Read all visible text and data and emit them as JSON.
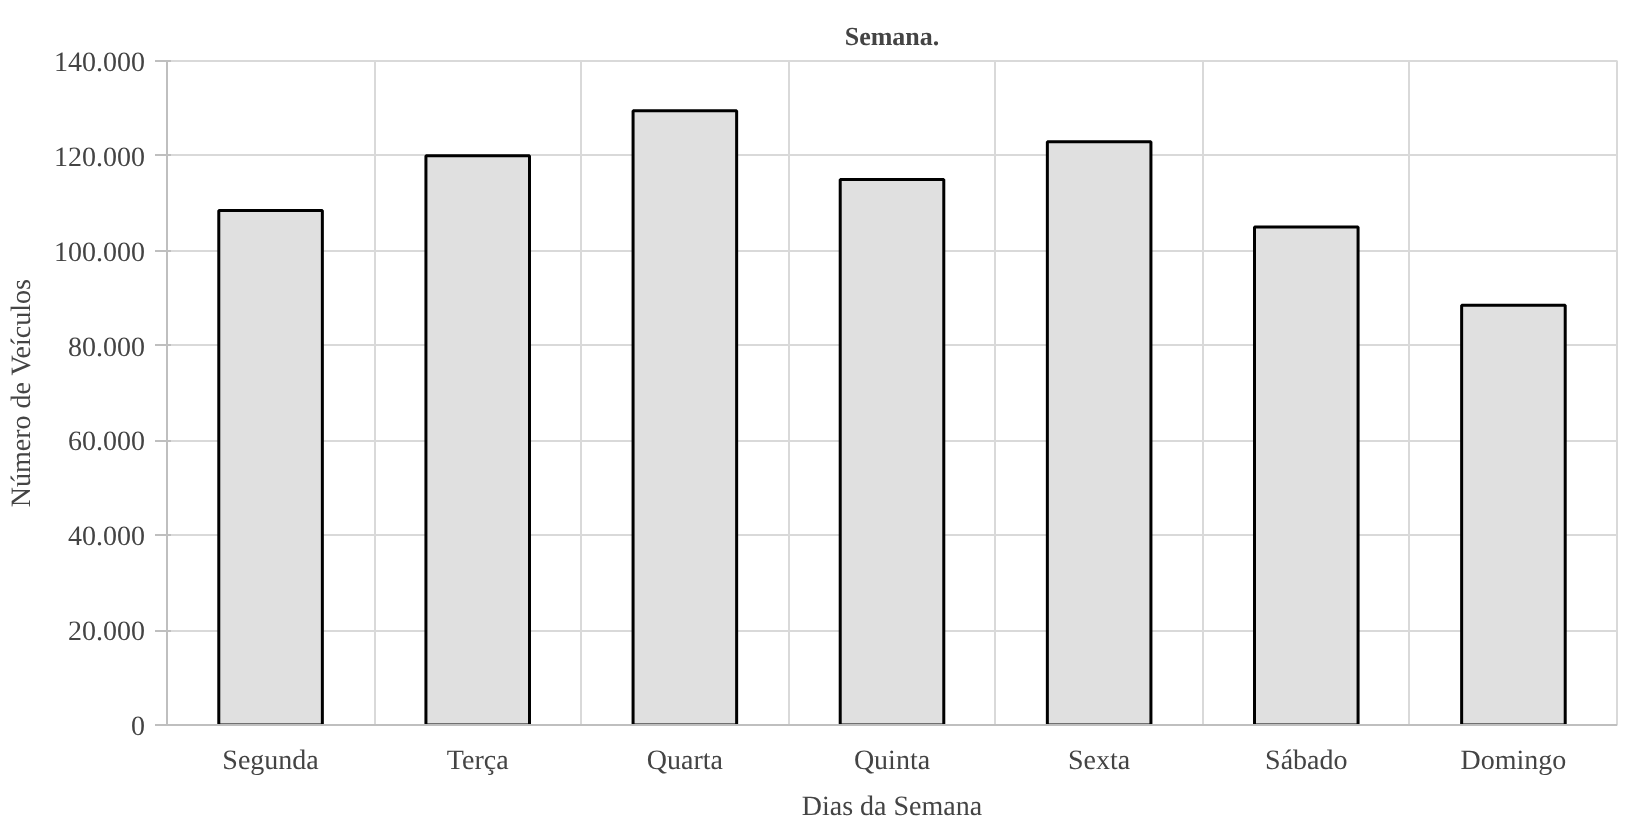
{
  "chart_data": {
    "type": "bar",
    "title": "Semana.",
    "xlabel": "Dias da Semana",
    "ylabel": "Número de Veículos",
    "categories": [
      "Segunda",
      "Terça",
      "Quarta",
      "Quinta",
      "Sexta",
      "Sábado",
      "Domingo"
    ],
    "values": [
      108500,
      120000,
      129500,
      115000,
      123000,
      105000,
      88500
    ],
    "color": "#e0e0e0",
    "ylim": [
      0,
      140000
    ],
    "yticks": [
      {
        "value": 0,
        "label": "0"
      },
      {
        "value": 20000,
        "label": "20.000"
      },
      {
        "value": 40000,
        "label": "40.000"
      },
      {
        "value": 60000,
        "label": "60.000"
      },
      {
        "value": 80000,
        "label": "80.000"
      },
      {
        "value": 100000,
        "label": "100.000"
      },
      {
        "value": 120000,
        "label": "120.000"
      },
      {
        "value": 140000,
        "label": "140.000"
      }
    ],
    "grid": true
  }
}
